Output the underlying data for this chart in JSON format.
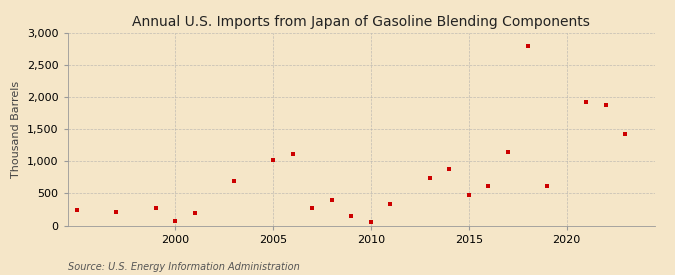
{
  "title": "Annual U.S. Imports from Japan of Gasoline Blending Components",
  "ylabel": "Thousand Barrels",
  "source": "Source: U.S. Energy Information Administration",
  "background_color": "#f5e6c8",
  "plot_bg_color": "#f5e6c8",
  "marker_color": "#cc0000",
  "marker": "s",
  "marker_size": 3.5,
  "grid_color": "#aaaaaa",
  "ylim": [
    0,
    3000
  ],
  "yticks": [
    0,
    500,
    1000,
    1500,
    2000,
    2500,
    3000
  ],
  "years": [
    1995,
    1997,
    1999,
    2000,
    2001,
    2003,
    2005,
    2006,
    2007,
    2008,
    2009,
    2010,
    2011,
    2013,
    2014,
    2015,
    2016,
    2017,
    2018,
    2019,
    2021,
    2022,
    2023
  ],
  "values": [
    240,
    210,
    280,
    70,
    190,
    700,
    1020,
    1110,
    270,
    400,
    155,
    55,
    330,
    740,
    880,
    480,
    610,
    1140,
    2800,
    610,
    1920,
    1880,
    1420
  ],
  "xlim": [
    1994.5,
    2024.5
  ],
  "xticks": [
    2000,
    2005,
    2010,
    2015,
    2020
  ],
  "title_fontsize": 10,
  "label_fontsize": 8,
  "tick_fontsize": 8,
  "source_fontsize": 7,
  "spine_color": "#999999"
}
